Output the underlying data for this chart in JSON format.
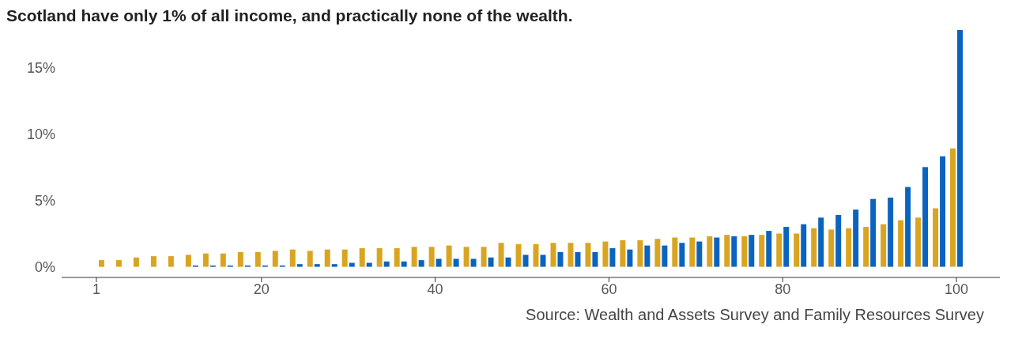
{
  "chart_data": {
    "type": "bar",
    "title": "Scotland have only 1% of all income, and practically none of the wealth.",
    "annotations": [
      "Source: Wealth and Assets Survey and Family Resources Survey"
    ],
    "x": [
      2,
      4,
      6,
      8,
      10,
      12,
      14,
      16,
      18,
      20,
      22,
      24,
      26,
      28,
      30,
      32,
      34,
      36,
      38,
      40,
      42,
      44,
      46,
      48,
      50,
      52,
      54,
      56,
      58,
      60,
      62,
      64,
      66,
      68,
      70,
      72,
      74,
      76,
      78,
      80,
      82,
      84,
      86,
      88,
      90,
      92,
      94,
      96,
      98,
      100
    ],
    "series": [
      {
        "color": "#d9a521",
        "values": [
          0.5,
          0.5,
          0.7,
          0.8,
          0.8,
          0.9,
          1.0,
          1.0,
          1.1,
          1.1,
          1.2,
          1.3,
          1.2,
          1.3,
          1.3,
          1.4,
          1.4,
          1.4,
          1.5,
          1.5,
          1.6,
          1.5,
          1.5,
          1.8,
          1.7,
          1.7,
          1.8,
          1.8,
          1.8,
          1.9,
          2.0,
          2.0,
          2.1,
          2.2,
          2.2,
          2.3,
          2.4,
          2.3,
          2.4,
          2.5,
          2.5,
          2.9,
          2.8,
          2.9,
          3.0,
          3.2,
          3.5,
          3.7,
          4.4,
          8.9
        ]
      },
      {
        "color": "#0b63c0",
        "values": [
          0,
          0,
          0,
          0,
          0,
          0.1,
          0.1,
          0.1,
          0.1,
          0.1,
          0.1,
          0.2,
          0.2,
          0.2,
          0.3,
          0.3,
          0.4,
          0.4,
          0.5,
          0.6,
          0.6,
          0.6,
          0.7,
          0.7,
          0.9,
          0.9,
          1.1,
          1.1,
          1.1,
          1.4,
          1.3,
          1.6,
          1.6,
          1.8,
          1.9,
          2.2,
          2.3,
          2.4,
          2.7,
          3.0,
          3.2,
          3.7,
          3.9,
          4.3,
          5.1,
          5.2,
          6.0,
          7.5,
          8.3,
          17.8
        ]
      }
    ],
    "xlim": [
      -3,
      105
    ],
    "xticks": [
      1,
      20,
      40,
      60,
      80,
      100
    ],
    "ylim": [
      -0.8,
      17.8
    ],
    "yticks": [
      {
        "value": 0,
        "label": "0%"
      },
      {
        "value": 5,
        "label": "5%"
      },
      {
        "value": 10,
        "label": "10%"
      },
      {
        "value": 15,
        "label": "15%"
      }
    ]
  }
}
